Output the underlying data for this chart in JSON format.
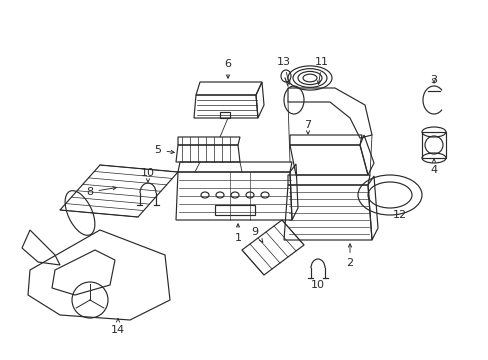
{
  "bg_color": "#ffffff",
  "line_color": "#2a2a2a",
  "lw": 0.85,
  "figsize": [
    4.89,
    3.6
  ],
  "dpi": 100
}
